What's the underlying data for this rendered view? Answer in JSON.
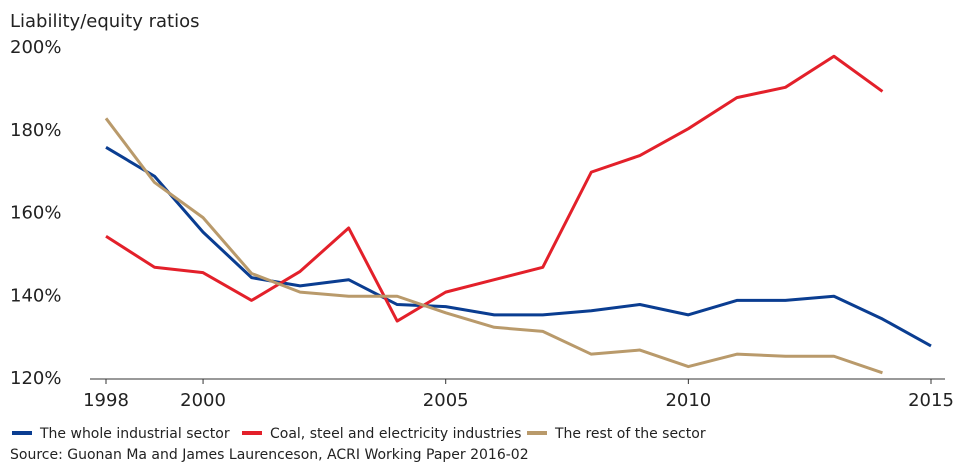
{
  "chart_data": {
    "type": "line",
    "title": "Liability/equity ratios",
    "source": "Source: Guonan Ma and James Laurenceson, ACRI Working Paper 2016-02",
    "x": [
      1998,
      1999,
      2000,
      2001,
      2002,
      2003,
      2004,
      2005,
      2006,
      2007,
      2008,
      2009,
      2010,
      2011,
      2012,
      2013,
      2014,
      2015
    ],
    "xlim": [
      1998,
      2015
    ],
    "xticks": [
      1998,
      2000,
      2005,
      2010,
      2015
    ],
    "ylim": [
      120,
      200
    ],
    "yticks": [
      {
        "value": 120,
        "label": "120%"
      },
      {
        "value": 140,
        "label": "140%"
      },
      {
        "value": 160,
        "label": "160%"
      },
      {
        "value": 180,
        "label": "180%"
      },
      {
        "value": 200,
        "label": "200%"
      }
    ],
    "legend": "bottom",
    "series": [
      {
        "name": "The whole industrial sector",
        "color": "#0a3d91",
        "values": [
          176,
          169,
          155.5,
          144.5,
          142.5,
          144,
          138,
          137.5,
          135.5,
          135.5,
          136.5,
          138,
          135.5,
          139,
          139,
          140,
          134.5,
          128
        ]
      },
      {
        "name": "Coal, steel and electricity industries",
        "color": "#e3202a",
        "values": [
          154.5,
          147,
          145.7,
          139,
          146,
          156.5,
          134,
          141,
          144,
          147,
          170,
          174,
          180.5,
          188,
          190.5,
          198,
          189.5,
          null
        ]
      },
      {
        "name": "The rest of the sector",
        "color": "#b99a6b",
        "values": [
          183,
          167.5,
          159,
          145.5,
          141,
          140,
          140,
          136,
          132.5,
          131.5,
          126,
          127,
          123,
          126,
          125.5,
          125.5,
          121.5,
          null
        ]
      }
    ]
  }
}
